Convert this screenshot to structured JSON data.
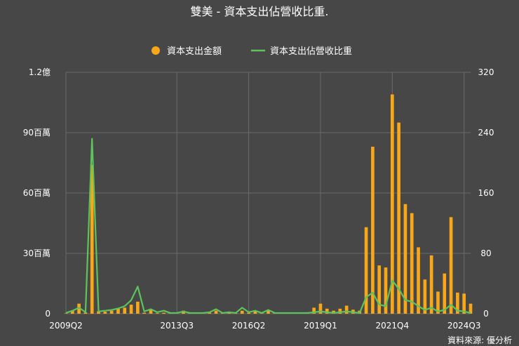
{
  "chart_data": {
    "type": "bar+line",
    "title": "雙美 - 資本支出佔營收比重.",
    "source": "資料來源: 優分析",
    "legend_position": "top-center",
    "grid": true,
    "colors": {
      "bar": "#f7a718",
      "line": "#5cc45c",
      "background": "#474747"
    },
    "x_ticks": [
      "2009Q2",
      "2013Q3",
      "2016Q2",
      "2019Q1",
      "2021Q4",
      "2024Q3"
    ],
    "x_tick_index": [
      0,
      17,
      28,
      39,
      50,
      61
    ],
    "left_axis": {
      "ylim": [
        0,
        120000000
      ],
      "tick_values": [
        0,
        30000000,
        60000000,
        90000000,
        120000000
      ],
      "tick_labels": [
        "0",
        "30百萬",
        "60百萬",
        "90百萬",
        "1.2億"
      ]
    },
    "right_axis": {
      "ylim": [
        0,
        320
      ],
      "tick_values": [
        0,
        80,
        160,
        240,
        320
      ],
      "tick_labels": [
        "0",
        "80",
        "160",
        "240",
        "320"
      ]
    },
    "series": [
      {
        "name": "資本支出金額",
        "kind": "bar",
        "axis": "left",
        "values": [
          200000,
          1500000,
          5000000,
          600000,
          74000000,
          1200000,
          1000000,
          1500000,
          2500000,
          3000000,
          4500000,
          6000000,
          500000,
          2000000,
          300000,
          500000,
          200000,
          100000,
          1500000,
          300000,
          300000,
          300000,
          500000,
          1500000,
          300000,
          500000,
          300000,
          1500000,
          500000,
          1500000,
          300000,
          1500000,
          300000,
          300000,
          300000,
          300000,
          300000,
          300000,
          3000000,
          5000000,
          2500000,
          1500000,
          2500000,
          4000000,
          2000000,
          1500000,
          43000000,
          83000000,
          24000000,
          23000000,
          109000000,
          95000000,
          54500000,
          50000000,
          33000000,
          17000000,
          29000000,
          11000000,
          20000000,
          48000000,
          10500000,
          10000000,
          5000000
        ]
      },
      {
        "name": "資本支出佔營收比重",
        "kind": "line",
        "axis": "right",
        "values": [
          1,
          4,
          8,
          2,
          232,
          3,
          4,
          5,
          7,
          10,
          18,
          36,
          3,
          6,
          2,
          4,
          1,
          1,
          3,
          1,
          1,
          1,
          2,
          6,
          1,
          2,
          1,
          8,
          2,
          4,
          1,
          5,
          1,
          1,
          1,
          1,
          1,
          1,
          2,
          3,
          2,
          1,
          2,
          3,
          2,
          1,
          22,
          28,
          12,
          10,
          44,
          33,
          18,
          16,
          10,
          5,
          8,
          3,
          5,
          12,
          4,
          3,
          1
        ]
      }
    ]
  }
}
